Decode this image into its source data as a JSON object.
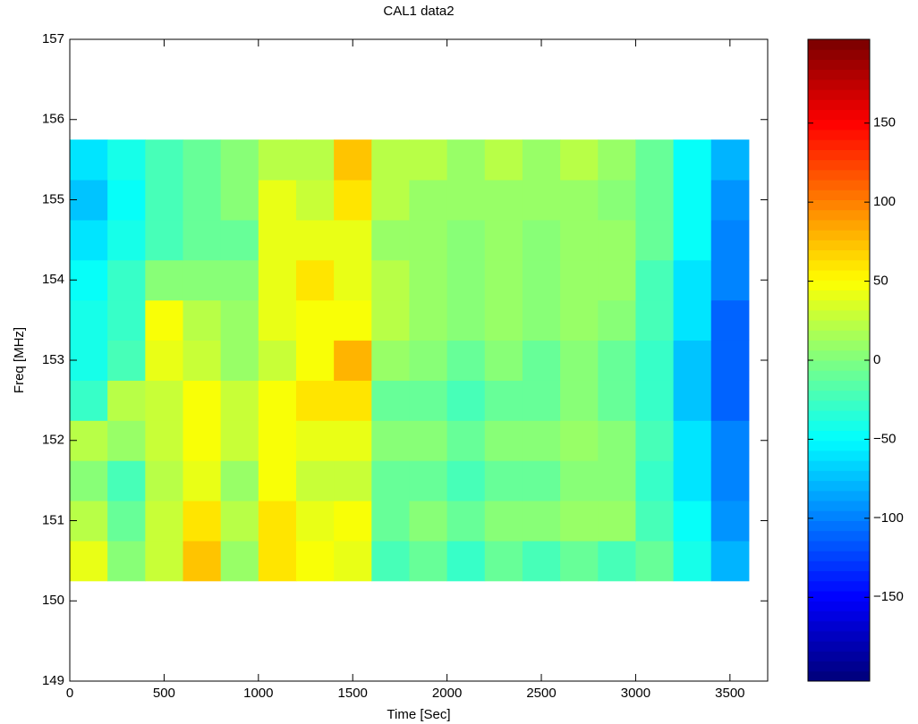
{
  "chart_data": {
    "type": "heatmap",
    "title": "CAL1 data2",
    "xlabel": "Time [Sec]",
    "ylabel": "Freq [MHz]",
    "x": [
      100,
      300,
      500,
      700,
      900,
      1100,
      1300,
      1500,
      1700,
      1900,
      2100,
      2300,
      2500,
      2700,
      2900,
      3100,
      3300,
      3500
    ],
    "y": [
      150.5,
      151.0,
      151.5,
      152.0,
      152.5,
      153.0,
      153.5,
      154.0,
      154.5,
      155.0,
      155.5
    ],
    "z": [
      [
        40,
        0,
        30,
        70,
        10,
        60,
        50,
        40,
        -20,
        -10,
        -30,
        -10,
        -20,
        -10,
        -20,
        -10,
        -40,
        -80
      ],
      [
        20,
        -10,
        30,
        60,
        20,
        60,
        40,
        50,
        -10,
        0,
        -10,
        0,
        0,
        10,
        10,
        -20,
        -50,
        -90
      ],
      [
        0,
        -20,
        20,
        40,
        10,
        50,
        30,
        30,
        -10,
        -10,
        -20,
        -10,
        -10,
        0,
        0,
        -30,
        -60,
        -100
      ],
      [
        20,
        10,
        30,
        50,
        30,
        50,
        40,
        40,
        0,
        0,
        -10,
        0,
        0,
        10,
        0,
        -20,
        -60,
        -100
      ],
      [
        -30,
        20,
        30,
        50,
        30,
        50,
        60,
        60,
        -10,
        -10,
        -20,
        -10,
        -10,
        0,
        -10,
        -30,
        -70,
        -110
      ],
      [
        -40,
        -20,
        40,
        30,
        10,
        30,
        50,
        80,
        10,
        0,
        -10,
        0,
        -10,
        0,
        -10,
        -30,
        -70,
        -110
      ],
      [
        -40,
        -30,
        50,
        20,
        10,
        40,
        50,
        50,
        20,
        10,
        0,
        10,
        0,
        10,
        0,
        -20,
        -60,
        -110
      ],
      [
        -50,
        -30,
        0,
        0,
        0,
        40,
        60,
        40,
        20,
        10,
        0,
        10,
        0,
        10,
        10,
        -20,
        -60,
        -100
      ],
      [
        -60,
        -40,
        -20,
        -10,
        -10,
        40,
        40,
        40,
        10,
        10,
        0,
        10,
        0,
        10,
        10,
        -10,
        -50,
        -100
      ],
      [
        -70,
        -50,
        -20,
        -10,
        0,
        40,
        30,
        60,
        20,
        10,
        10,
        10,
        10,
        10,
        0,
        -10,
        -50,
        -90
      ],
      [
        -60,
        -40,
        -20,
        -10,
        0,
        20,
        20,
        70,
        20,
        20,
        10,
        20,
        10,
        20,
        10,
        -10,
        -50,
        -80
      ]
    ],
    "xlim": [
      0,
      3700
    ],
    "xticks": [
      0,
      500,
      1000,
      1500,
      2000,
      2500,
      3000,
      3500
    ],
    "ylim": [
      149,
      157
    ],
    "yticks": [
      149,
      150,
      151,
      152,
      153,
      154,
      155,
      156,
      157
    ],
    "clim": [
      -203,
      203
    ],
    "cticks": [
      {
        "value": -150,
        "label": "−150"
      },
      {
        "value": -100,
        "label": "−100"
      },
      {
        "value": -50,
        "label": "−50"
      },
      0,
      50,
      100,
      150
    ],
    "colormap": "jet"
  }
}
